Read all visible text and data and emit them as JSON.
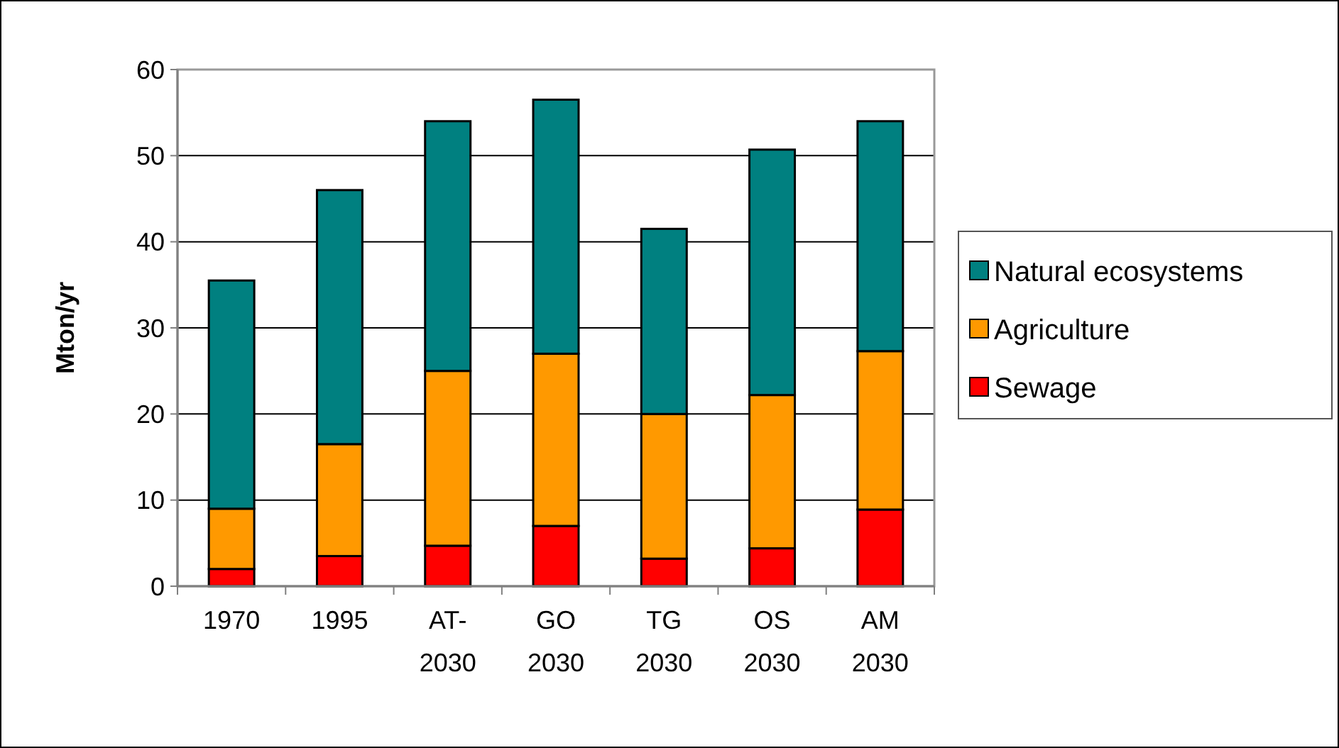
{
  "chart_data": {
    "type": "bar",
    "stacked": true,
    "ylabel": "Mton/yr",
    "categories": [
      "1970",
      "1995",
      "AT-\n2030",
      "GO\n2030",
      "TG\n2030",
      "OS\n2030",
      "AM\n2030"
    ],
    "series": [
      {
        "name": "Sewage",
        "color": "#ff0000",
        "values": [
          2,
          3.5,
          4.7,
          7,
          3.2,
          4.4,
          8.9
        ]
      },
      {
        "name": "Agriculture",
        "color": "#ff9900",
        "values": [
          7,
          13,
          20.3,
          20,
          16.8,
          17.8,
          18.4
        ]
      },
      {
        "name": "Natural ecosystems",
        "color": "#008080",
        "values": [
          26.5,
          29.5,
          29,
          29.5,
          21.5,
          28.5,
          26.7
        ]
      }
    ],
    "ylim": [
      0,
      60
    ],
    "yticks": [
      0,
      10,
      20,
      30,
      40,
      50,
      60
    ],
    "grid": "y",
    "legend": "right"
  }
}
